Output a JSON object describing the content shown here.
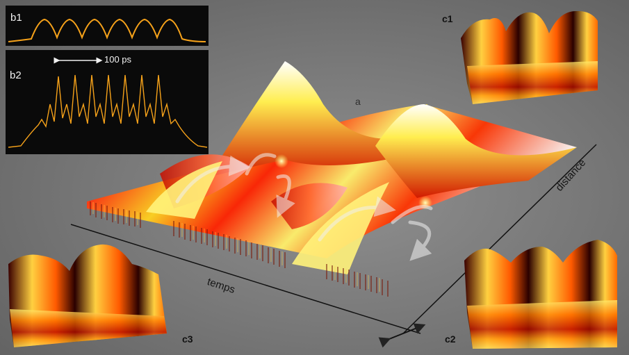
{
  "labels": {
    "a": "a",
    "b1": "b1",
    "b2": "b2",
    "c1": "c1",
    "c2": "c2",
    "c3": "c3",
    "scale": "100 ps",
    "time_axis": "temps",
    "distance_axis": "distance"
  },
  "colors": {
    "background": "#7a7a7a",
    "inset_background": "#0a0a0a",
    "trace": "#f6a21a",
    "surface_hot": "#ff1e00",
    "surface_warm": "#ffd400",
    "surface_dark": "#2a0000"
  },
  "icons": {
    "flow_arrows": "curved-arrow-icon",
    "scale_arrow": "double-arrow-icon"
  }
}
